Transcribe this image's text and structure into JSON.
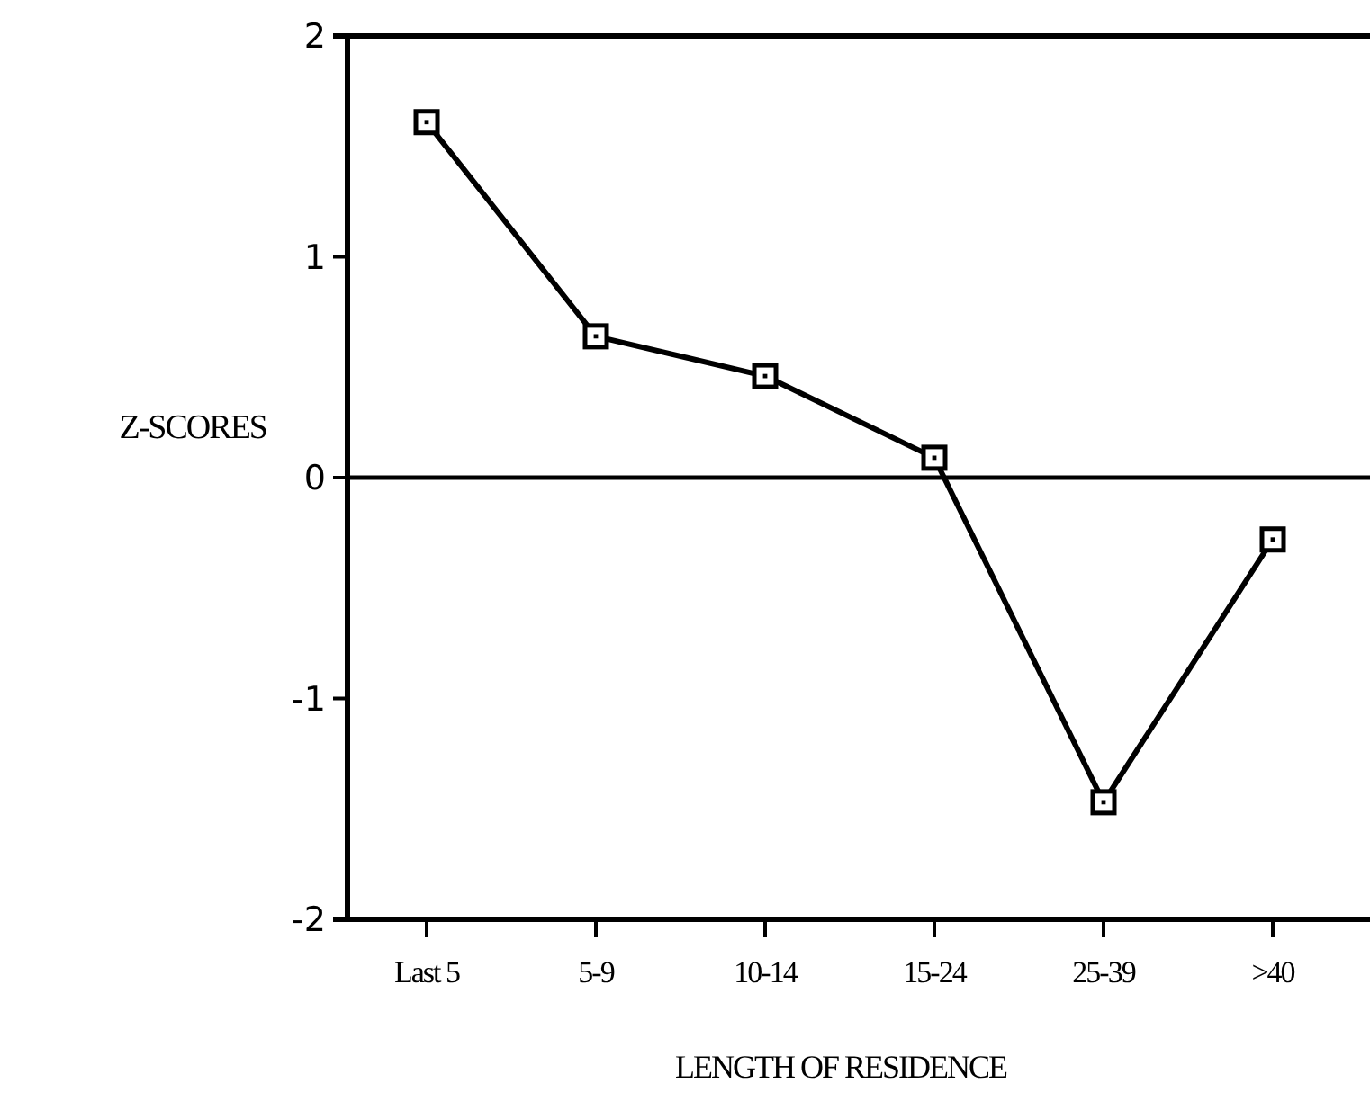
{
  "chart_data": {
    "type": "line",
    "xlabel": "LENGTH OF RESIDENCE",
    "ylabel": "Z-SCORES",
    "categories": [
      "Last 5",
      "5-9",
      "10-14",
      "15-24",
      "25-39",
      ">40"
    ],
    "series": [
      {
        "color": "#000000",
        "values": [
          1.61,
          0.64,
          0.46,
          0.09,
          -1.47,
          -0.28
        ]
      }
    ],
    "ylim": [
      -2,
      2
    ],
    "yticks": [
      -2,
      -1,
      0,
      1,
      2
    ],
    "ref_lines": [
      {
        "axis": "y",
        "value": 0,
        "color": "#000000"
      }
    ],
    "marker": "square",
    "line_style": "solid",
    "grid": false
  }
}
